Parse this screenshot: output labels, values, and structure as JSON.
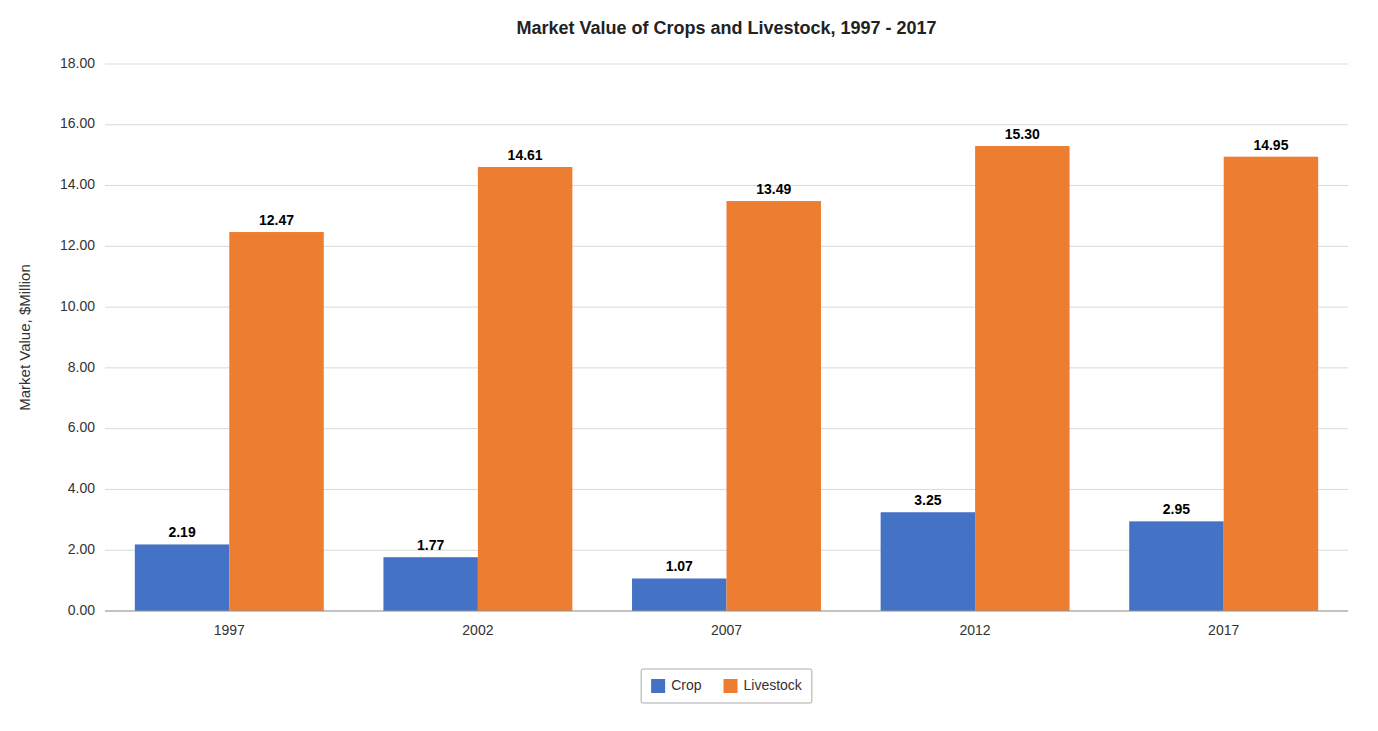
{
  "chart_data": {
    "type": "bar",
    "title": "Market Value of Crops and Livestock, 1997 - 2017",
    "ylabel": "Market Value, $Million",
    "categories": [
      "1997",
      "2002",
      "2007",
      "2012",
      "2017"
    ],
    "series": [
      {
        "name": "Crop",
        "color": "#4472C4",
        "values": [
          2.19,
          1.77,
          1.07,
          3.25,
          2.95
        ],
        "value_labels": [
          "2.19",
          "1.77",
          "1.07",
          "3.25",
          "2.95"
        ]
      },
      {
        "name": "Livestock",
        "color": "#ED7D31",
        "values": [
          12.47,
          14.61,
          13.49,
          15.3,
          14.95
        ],
        "value_labels": [
          "12.47",
          "14.61",
          "13.49",
          "15.30",
          "14.95"
        ]
      }
    ],
    "ylim": [
      0,
      18.0
    ],
    "yticks": [
      {
        "value": 0,
        "label": "0.00"
      },
      {
        "value": 2,
        "label": "2.00"
      },
      {
        "value": 4,
        "label": "4.00"
      },
      {
        "value": 6,
        "label": "6.00"
      },
      {
        "value": 8,
        "label": "8.00"
      },
      {
        "value": 10,
        "label": "10.00"
      },
      {
        "value": 12,
        "label": "12.00"
      },
      {
        "value": 14,
        "label": "14.00"
      },
      {
        "value": 16,
        "label": "16.00"
      },
      {
        "value": 18,
        "label": "18.00"
      }
    ],
    "grid": true,
    "legend": "bottom",
    "data_labels": true
  }
}
